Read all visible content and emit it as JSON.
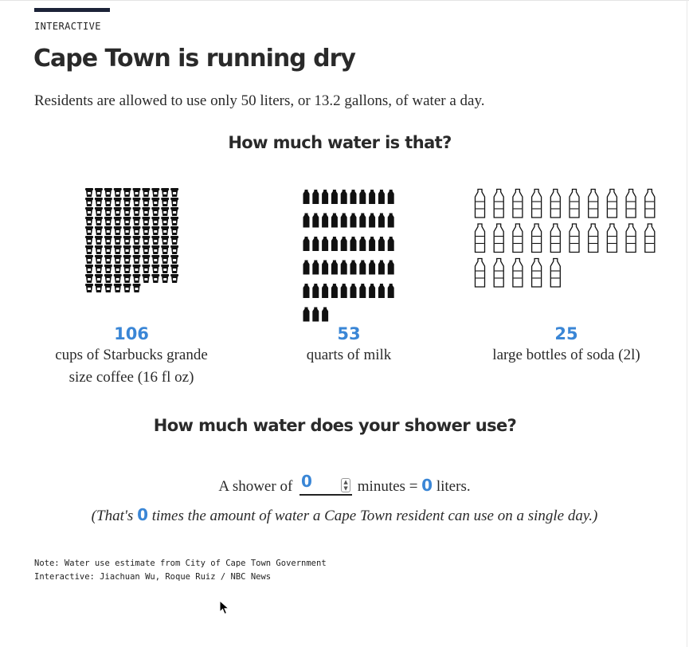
{
  "header": {
    "kicker": "INTERACTIVE",
    "title": "Cape Town is running dry",
    "subtitle": "Residents are allowed to use only 50 liters, or 13.2 gallons, of water a day."
  },
  "equivalents": {
    "heading": "How much water is that?",
    "items": [
      {
        "count": "106",
        "icon": "coffee-cup-icon",
        "description_line1": "cups of Starbucks grande",
        "description_line2": "size coffee (16 fl oz)"
      },
      {
        "count": "53",
        "icon": "milk-carton-icon",
        "description_line1": "quarts of milk",
        "description_line2": ""
      },
      {
        "count": "25",
        "icon": "soda-bottle-icon",
        "description_line1": "large bottles of soda (2l)",
        "description_line2": ""
      }
    ]
  },
  "shower": {
    "heading": "How much water does your shower use?",
    "prefix": "A shower of",
    "minutes_value": "0",
    "mid": "minutes =",
    "liters_value": "0",
    "suffix": "liters.",
    "comparison_prefix": "(That's",
    "comparison_value": "0",
    "comparison_suffix": "times the amount of water a Cape Town resident can use on a single day.)"
  },
  "footer": {
    "note": "Note: Water use estimate from City of Cape Town Government",
    "credit": "Interactive: Jiachuan Wu, Roque Ruiz / NBC News"
  },
  "colors": {
    "accent_bar": "#1c2338",
    "highlight": "#3a86d6",
    "text": "#2a2a2a"
  }
}
